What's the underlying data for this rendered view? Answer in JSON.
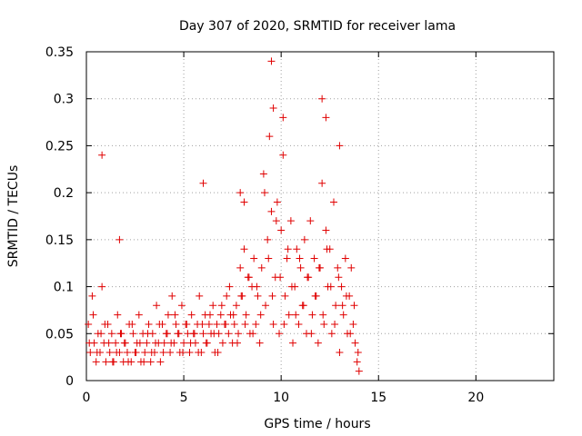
{
  "chart_data": {
    "type": "scatter",
    "title": "Day 307 of 2020, SRMTID for receiver lama",
    "xlabel": "GPS time / hours",
    "ylabel": "SRMTID / TECUs",
    "xlim": [
      0,
      24
    ],
    "ylim": [
      0,
      0.35
    ],
    "xticks": [
      0,
      5,
      10,
      15,
      20
    ],
    "xtick_labels": [
      "0",
      "5",
      "10",
      "15",
      "20"
    ],
    "yticks": [
      0,
      0.05,
      0.1,
      0.15,
      0.2,
      0.25,
      0.3,
      0.35
    ],
    "ytick_labels": [
      "0",
      "0.05",
      "0.1",
      "0.15",
      "0.2",
      "0.25",
      "0.3",
      "0.35"
    ],
    "grid": true,
    "marker": "plus",
    "color": "#e00000",
    "series": [
      {
        "name": "SRMTID",
        "x": [
          0.1,
          0.2,
          0.3,
          0.4,
          0.5,
          0.6,
          0.7,
          0.8,
          0.9,
          1.0,
          1.1,
          1.2,
          1.3,
          1.4,
          1.5,
          1.6,
          1.7,
          1.8,
          1.9,
          2.0,
          2.1,
          2.2,
          2.3,
          2.4,
          2.5,
          2.6,
          2.7,
          2.8,
          2.9,
          3.0,
          3.1,
          3.2,
          3.3,
          3.4,
          3.5,
          3.6,
          3.7,
          3.8,
          3.9,
          4.0,
          4.1,
          4.2,
          4.3,
          4.4,
          4.5,
          4.6,
          4.7,
          4.8,
          4.9,
          5.0,
          5.1,
          5.2,
          5.3,
          5.4,
          5.5,
          5.6,
          5.7,
          5.8,
          5.9,
          6.0,
          6.1,
          6.2,
          6.3,
          6.4,
          6.5,
          6.6,
          6.7,
          6.8,
          6.9,
          7.0,
          7.1,
          7.2,
          7.3,
          7.4,
          7.5,
          7.6,
          7.7,
          7.8,
          7.9,
          8.0,
          8.1,
          8.2,
          8.3,
          8.4,
          8.5,
          8.6,
          8.7,
          8.8,
          8.9,
          9.0,
          9.1,
          9.2,
          9.3,
          9.4,
          9.5,
          9.6,
          9.7,
          9.8,
          9.9,
          10.0,
          10.1,
          10.2,
          10.3,
          10.4,
          10.5,
          10.6,
          10.7,
          10.8,
          10.9,
          11.0,
          11.1,
          11.2,
          11.3,
          11.4,
          11.5,
          11.6,
          11.7,
          11.8,
          11.9,
          12.0,
          12.1,
          12.2,
          12.3,
          12.4,
          12.5,
          12.6,
          12.7,
          12.8,
          12.9,
          13.0,
          13.1,
          13.2,
          13.3,
          13.4,
          13.5,
          13.6,
          13.7,
          13.8,
          13.9,
          14.0,
          0.15,
          0.35,
          0.55,
          0.75,
          0.95,
          1.15,
          1.35,
          1.55,
          1.75,
          1.95,
          2.15,
          2.35,
          2.55,
          2.75,
          2.95,
          3.15,
          3.35,
          3.55,
          3.75,
          3.95,
          4.15,
          4.35,
          4.55,
          4.75,
          4.95,
          5.15,
          5.35,
          5.55,
          5.75,
          5.95,
          6.15,
          6.35,
          6.55,
          6.75,
          6.95,
          7.15,
          7.35,
          7.55,
          7.75,
          7.95,
          8.15,
          8.35,
          8.55,
          8.75,
          8.95,
          9.15,
          9.35,
          9.55,
          9.75,
          9.95,
          10.15,
          10.35,
          10.55,
          10.75,
          10.95,
          11.15,
          11.35,
          11.55,
          11.75,
          11.95,
          12.15,
          12.35,
          12.55,
          12.75,
          12.95,
          13.15,
          13.35,
          13.55,
          13.75,
          13.95,
          0.8,
          9.5,
          12.1,
          9.6,
          10.1,
          12.3,
          13.0,
          6.0,
          7.9,
          8.1,
          1.7
        ],
        "y": [
          0.06,
          0.03,
          0.09,
          0.04,
          0.02,
          0.05,
          0.03,
          0.1,
          0.04,
          0.02,
          0.06,
          0.03,
          0.05,
          0.02,
          0.04,
          0.07,
          0.03,
          0.05,
          0.02,
          0.04,
          0.03,
          0.06,
          0.02,
          0.05,
          0.03,
          0.04,
          0.07,
          0.02,
          0.05,
          0.03,
          0.04,
          0.06,
          0.02,
          0.05,
          0.03,
          0.08,
          0.04,
          0.02,
          0.06,
          0.04,
          0.05,
          0.07,
          0.03,
          0.09,
          0.04,
          0.06,
          0.05,
          0.03,
          0.08,
          0.04,
          0.06,
          0.05,
          0.03,
          0.07,
          0.05,
          0.04,
          0.06,
          0.09,
          0.03,
          0.05,
          0.07,
          0.04,
          0.06,
          0.05,
          0.08,
          0.03,
          0.06,
          0.05,
          0.07,
          0.04,
          0.06,
          0.09,
          0.05,
          0.07,
          0.04,
          0.06,
          0.08,
          0.05,
          0.12,
          0.09,
          0.14,
          0.07,
          0.11,
          0.05,
          0.1,
          0.13,
          0.06,
          0.09,
          0.04,
          0.12,
          0.22,
          0.08,
          0.15,
          0.26,
          0.18,
          0.06,
          0.11,
          0.19,
          0.05,
          0.16,
          0.24,
          0.09,
          0.13,
          0.07,
          0.17,
          0.04,
          0.1,
          0.14,
          0.06,
          0.12,
          0.08,
          0.15,
          0.05,
          0.11,
          0.17,
          0.07,
          0.13,
          0.09,
          0.04,
          0.12,
          0.21,
          0.06,
          0.16,
          0.1,
          0.14,
          0.05,
          0.19,
          0.08,
          0.12,
          0.03,
          0.1,
          0.07,
          0.13,
          0.05,
          0.09,
          0.12,
          0.06,
          0.04,
          0.02,
          0.01,
          0.04,
          0.07,
          0.03,
          0.05,
          0.06,
          0.04,
          0.02,
          0.03,
          0.05,
          0.04,
          0.02,
          0.06,
          0.03,
          0.04,
          0.02,
          0.05,
          0.03,
          0.04,
          0.06,
          0.03,
          0.05,
          0.04,
          0.07,
          0.05,
          0.03,
          0.06,
          0.04,
          0.05,
          0.03,
          0.06,
          0.04,
          0.07,
          0.05,
          0.03,
          0.08,
          0.06,
          0.1,
          0.07,
          0.04,
          0.09,
          0.06,
          0.11,
          0.05,
          0.1,
          0.07,
          0.2,
          0.13,
          0.09,
          0.17,
          0.11,
          0.06,
          0.14,
          0.1,
          0.07,
          0.13,
          0.08,
          0.11,
          0.05,
          0.09,
          0.12,
          0.07,
          0.14,
          0.1,
          0.06,
          0.11,
          0.08,
          0.09,
          0.05,
          0.08,
          0.03,
          0.24,
          0.34,
          0.3,
          0.29,
          0.28,
          0.28,
          0.25,
          0.21,
          0.2,
          0.19,
          0.15
        ]
      }
    ]
  }
}
